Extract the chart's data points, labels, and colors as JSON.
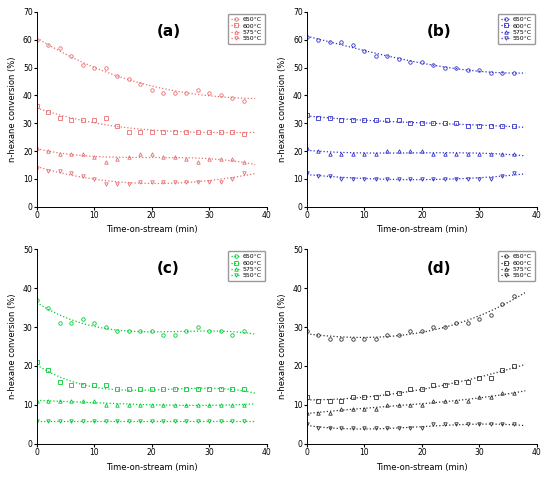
{
  "subplots": [
    "(a)",
    "(b)",
    "(c)",
    "(d)"
  ],
  "panel_colors": {
    "a": "#E87070",
    "b": "#3333CC",
    "c": "#00CC33",
    "d": "#333333"
  },
  "legend_temps": [
    "650°C",
    "600°C",
    "575°C",
    "550°C"
  ],
  "markers": [
    "o",
    "s",
    "^",
    "v"
  ],
  "xlabel": "Time-on-stream (min)",
  "ylabel": "n-hexane conversion (%)",
  "a": {
    "ylim": [
      0,
      70
    ],
    "yticks": [
      0,
      10,
      20,
      30,
      40,
      50,
      60,
      70
    ],
    "xticks": [
      0,
      10,
      20,
      30,
      40
    ],
    "series": {
      "650": {
        "x": [
          0,
          2,
          4,
          6,
          8,
          10,
          12,
          14,
          16,
          18,
          20,
          22,
          24,
          26,
          28,
          30,
          32,
          34,
          36
        ],
        "y": [
          60,
          58,
          57,
          54,
          51,
          50,
          50,
          47,
          46,
          44,
          42,
          41,
          41,
          41,
          42,
          41,
          40,
          39,
          38
        ]
      },
      "600": {
        "x": [
          0,
          2,
          4,
          6,
          8,
          10,
          12,
          14,
          16,
          18,
          20,
          22,
          24,
          26,
          28,
          30,
          32,
          34,
          36
        ],
        "y": [
          36,
          34,
          32,
          31,
          31,
          31,
          32,
          29,
          27,
          27,
          27,
          27,
          27,
          27,
          27,
          27,
          27,
          27,
          26
        ]
      },
      "575": {
        "x": [
          0,
          2,
          4,
          6,
          8,
          10,
          12,
          14,
          16,
          18,
          20,
          22,
          24,
          26,
          28,
          30,
          32,
          34,
          36
        ],
        "y": [
          21,
          20,
          19,
          19,
          19,
          18,
          16,
          17,
          18,
          19,
          19,
          18,
          18,
          17,
          16,
          17,
          17,
          17,
          16
        ]
      },
      "550": {
        "x": [
          0,
          2,
          4,
          6,
          8,
          10,
          12,
          14,
          16,
          18,
          20,
          22,
          24,
          26,
          28,
          30,
          32,
          34,
          36
        ],
        "y": [
          14,
          13,
          13,
          12,
          11,
          10,
          8,
          8,
          8,
          9,
          9,
          9,
          9,
          9,
          9,
          9,
          9,
          10,
          12
        ]
      }
    }
  },
  "b": {
    "ylim": [
      0,
      70
    ],
    "yticks": [
      0,
      10,
      20,
      30,
      40,
      50,
      60,
      70
    ],
    "xticks": [
      0,
      10,
      20,
      30,
      40
    ],
    "series": {
      "650": {
        "x": [
          0,
          2,
          4,
          6,
          8,
          10,
          12,
          14,
          16,
          18,
          20,
          22,
          24,
          26,
          28,
          30,
          32,
          34,
          36
        ],
        "y": [
          61,
          60,
          59,
          59,
          58,
          56,
          54,
          54,
          53,
          52,
          52,
          51,
          50,
          50,
          49,
          49,
          48,
          48,
          48
        ]
      },
      "600": {
        "x": [
          0,
          2,
          4,
          6,
          8,
          10,
          12,
          14,
          16,
          18,
          20,
          22,
          24,
          26,
          28,
          30,
          32,
          34,
          36
        ],
        "y": [
          33,
          32,
          32,
          31,
          31,
          31,
          31,
          31,
          31,
          30,
          30,
          30,
          30,
          30,
          29,
          29,
          29,
          29,
          29
        ]
      },
      "575": {
        "x": [
          0,
          2,
          4,
          6,
          8,
          10,
          12,
          14,
          16,
          18,
          20,
          22,
          24,
          26,
          28,
          30,
          32,
          34,
          36
        ],
        "y": [
          21,
          20,
          19,
          19,
          19,
          19,
          19,
          20,
          20,
          20,
          20,
          19,
          19,
          19,
          19,
          19,
          19,
          19,
          19
        ]
      },
      "550": {
        "x": [
          0,
          2,
          4,
          6,
          8,
          10,
          12,
          14,
          16,
          18,
          20,
          22,
          24,
          26,
          28,
          30,
          32,
          34,
          36
        ],
        "y": [
          12,
          11,
          11,
          10,
          10,
          10,
          10,
          10,
          10,
          10,
          10,
          10,
          10,
          10,
          10,
          10,
          10,
          11,
          12
        ]
      }
    }
  },
  "c": {
    "ylim": [
      0,
      50
    ],
    "yticks": [
      0,
      10,
      20,
      30,
      40,
      50
    ],
    "xticks": [
      0,
      10,
      20,
      30,
      40
    ],
    "series": {
      "650": {
        "x": [
          0,
          2,
          4,
          6,
          8,
          10,
          12,
          14,
          16,
          18,
          20,
          22,
          24,
          26,
          28,
          30,
          32,
          34,
          36
        ],
        "y": [
          37,
          35,
          31,
          31,
          32,
          31,
          30,
          29,
          29,
          29,
          29,
          28,
          28,
          29,
          30,
          29,
          29,
          28,
          29
        ]
      },
      "600": {
        "x": [
          0,
          2,
          4,
          6,
          8,
          10,
          12,
          14,
          16,
          18,
          20,
          22,
          24,
          26,
          28,
          30,
          32,
          34,
          36
        ],
        "y": [
          21,
          19,
          16,
          15,
          15,
          15,
          15,
          14,
          14,
          14,
          14,
          14,
          14,
          14,
          14,
          14,
          14,
          14,
          14
        ]
      },
      "575": {
        "x": [
          0,
          2,
          4,
          6,
          8,
          10,
          12,
          14,
          16,
          18,
          20,
          22,
          24,
          26,
          28,
          30,
          32,
          34,
          36
        ],
        "y": [
          11,
          11,
          11,
          11,
          11,
          11,
          10,
          10,
          10,
          10,
          10,
          10,
          10,
          10,
          10,
          10,
          10,
          10,
          10
        ]
      },
      "550": {
        "x": [
          0,
          2,
          4,
          6,
          8,
          10,
          12,
          14,
          16,
          18,
          20,
          22,
          24,
          26,
          28,
          30,
          32,
          34,
          36
        ],
        "y": [
          6,
          6,
          6,
          6,
          6,
          6,
          6,
          6,
          6,
          6,
          6,
          6,
          6,
          6,
          6,
          6,
          6,
          6,
          6
        ]
      }
    }
  },
  "d": {
    "ylim": [
      0,
      50
    ],
    "yticks": [
      0,
      10,
      20,
      30,
      40,
      50
    ],
    "xticks": [
      0,
      10,
      20,
      30,
      40
    ],
    "series": {
      "650": {
        "x": [
          0,
          2,
          4,
          6,
          8,
          10,
          12,
          14,
          16,
          18,
          20,
          22,
          24,
          26,
          28,
          30,
          32,
          34,
          36
        ],
        "y": [
          29,
          28,
          27,
          27,
          27,
          27,
          27,
          28,
          28,
          29,
          29,
          30,
          30,
          31,
          31,
          32,
          33,
          36,
          38
        ]
      },
      "600": {
        "x": [
          0,
          2,
          4,
          6,
          8,
          10,
          12,
          14,
          16,
          18,
          20,
          22,
          24,
          26,
          28,
          30,
          32,
          34,
          36
        ],
        "y": [
          12,
          11,
          11,
          11,
          12,
          12,
          12,
          13,
          13,
          14,
          14,
          15,
          15,
          16,
          16,
          17,
          17,
          19,
          20
        ]
      },
      "575": {
        "x": [
          0,
          2,
          4,
          6,
          8,
          10,
          12,
          14,
          16,
          18,
          20,
          22,
          24,
          26,
          28,
          30,
          32,
          34,
          36
        ],
        "y": [
          8,
          8,
          8,
          9,
          9,
          9,
          9,
          10,
          10,
          10,
          10,
          11,
          11,
          11,
          11,
          12,
          12,
          13,
          13
        ]
      },
      "550": {
        "x": [
          0,
          2,
          4,
          6,
          8,
          10,
          12,
          14,
          16,
          18,
          20,
          22,
          24,
          26,
          28,
          30,
          32,
          34,
          36
        ],
        "y": [
          5,
          4,
          4,
          4,
          4,
          4,
          4,
          4,
          4,
          4,
          4,
          5,
          5,
          5,
          5,
          5,
          5,
          5,
          5
        ]
      }
    }
  }
}
